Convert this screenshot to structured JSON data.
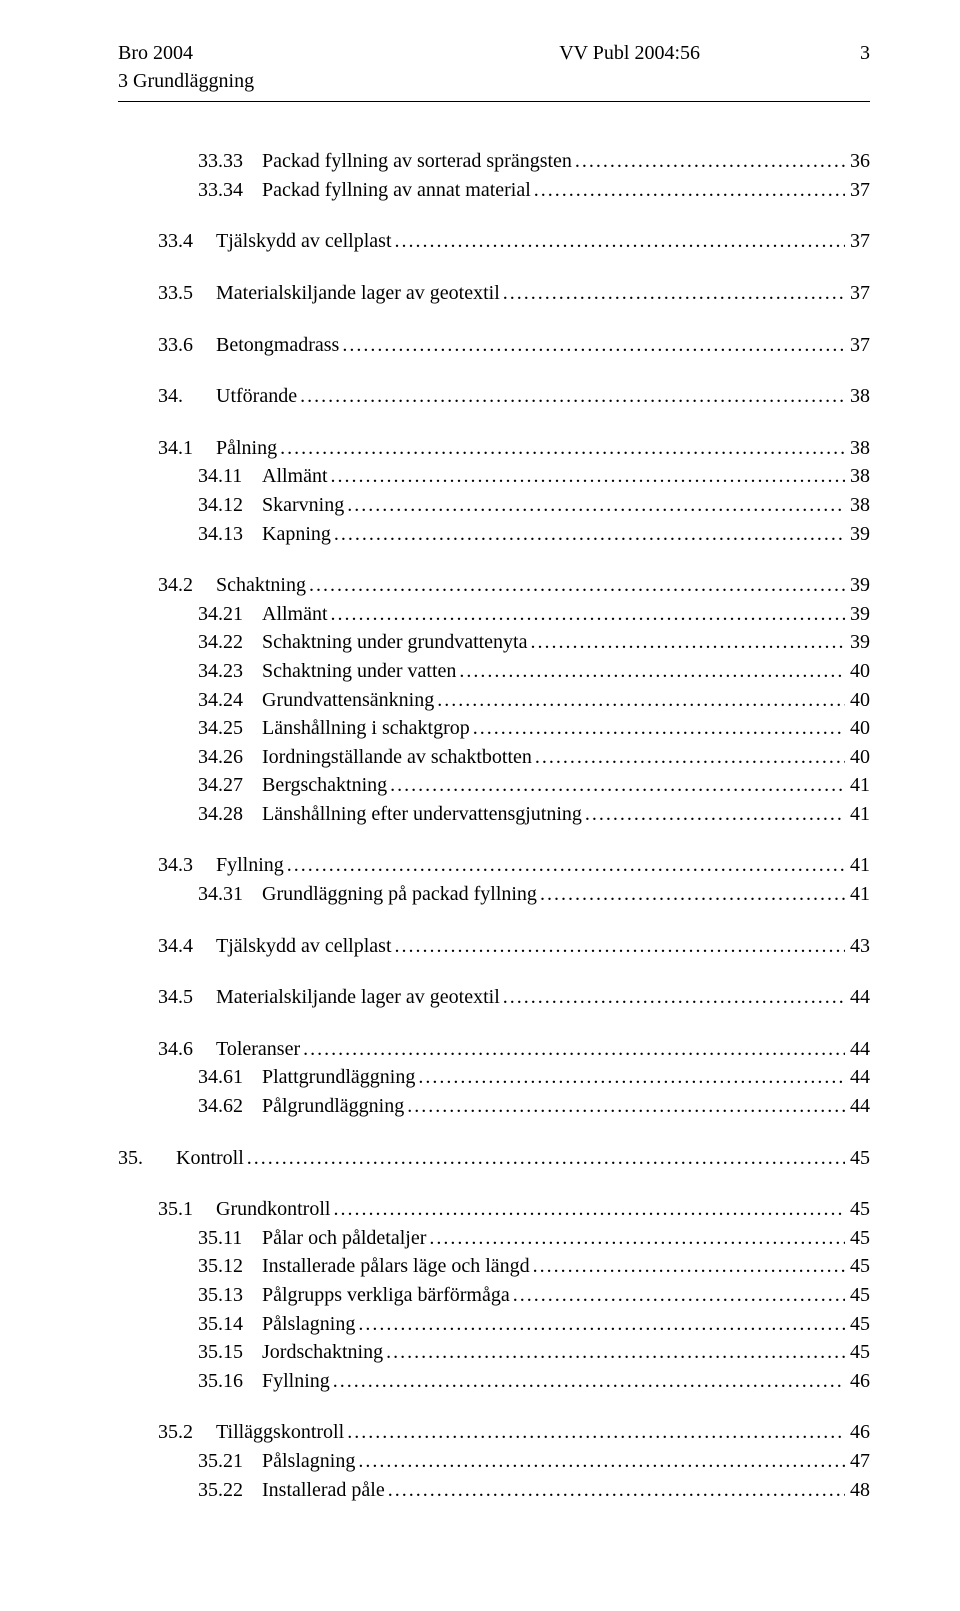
{
  "header": {
    "left": "Bro 2004",
    "center": "VV Publ 2004:56",
    "page": "3",
    "sub": "3 Grundläggning"
  },
  "toc": [
    {
      "items": [
        {
          "indent": 3,
          "num": "33.33",
          "label": "Packad fyllning av sorterad sprängsten",
          "page": "36"
        },
        {
          "indent": 3,
          "num": "33.34",
          "label": "Packad fyllning av annat material",
          "page": "37"
        }
      ]
    },
    {
      "items": [
        {
          "indent": 2,
          "num": "33.4",
          "label": "Tjälskydd av cellplast",
          "page": "37"
        }
      ]
    },
    {
      "items": [
        {
          "indent": 2,
          "num": "33.5",
          "label": "Materialskiljande lager av geotextil",
          "page": "37"
        }
      ]
    },
    {
      "items": [
        {
          "indent": 2,
          "num": "33.6",
          "label": "Betongmadrass",
          "page": "37"
        }
      ]
    },
    {
      "items": [
        {
          "indent": 1,
          "num": "34.",
          "label": "Utförande",
          "page": "38"
        }
      ]
    },
    {
      "items": [
        {
          "indent": 2,
          "num": "34.1",
          "label": "Pålning",
          "page": "38"
        },
        {
          "indent": 3,
          "num": "34.11",
          "label": "Allmänt",
          "page": "38"
        },
        {
          "indent": 3,
          "num": "34.12",
          "label": "Skarvning",
          "page": "38"
        },
        {
          "indent": 3,
          "num": "34.13",
          "label": "Kapning",
          "page": "39"
        }
      ]
    },
    {
      "items": [
        {
          "indent": 2,
          "num": "34.2",
          "label": "Schaktning",
          "page": "39"
        },
        {
          "indent": 3,
          "num": "34.21",
          "label": "Allmänt",
          "page": "39"
        },
        {
          "indent": 3,
          "num": "34.22",
          "label": "Schaktning under grundvattenyta",
          "page": "39"
        },
        {
          "indent": 3,
          "num": "34.23",
          "label": "Schaktning under vatten",
          "page": "40"
        },
        {
          "indent": 3,
          "num": "34.24",
          "label": "Grundvattensänkning",
          "page": "40"
        },
        {
          "indent": 3,
          "num": "34.25",
          "label": "Länshållning i schaktgrop",
          "page": "40"
        },
        {
          "indent": 3,
          "num": "34.26",
          "label": "Iordningställande av schaktbotten",
          "page": "40"
        },
        {
          "indent": 3,
          "num": "34.27",
          "label": "Bergschaktning",
          "page": "41"
        },
        {
          "indent": 3,
          "num": "34.28",
          "label": "Länshållning efter undervattensgjutning",
          "page": "41"
        }
      ]
    },
    {
      "items": [
        {
          "indent": 2,
          "num": "34.3",
          "label": "Fyllning",
          "page": "41"
        },
        {
          "indent": 3,
          "num": "34.31",
          "label": "Grundläggning på packad fyllning",
          "page": "41"
        }
      ]
    },
    {
      "items": [
        {
          "indent": 2,
          "num": "34.4",
          "label": "Tjälskydd av cellplast",
          "page": "43"
        }
      ]
    },
    {
      "items": [
        {
          "indent": 2,
          "num": "34.5",
          "label": "Materialskiljande lager av geotextil",
          "page": "44"
        }
      ]
    },
    {
      "items": [
        {
          "indent": 2,
          "num": "34.6",
          "label": "Toleranser",
          "page": "44"
        },
        {
          "indent": 3,
          "num": "34.61",
          "label": "Plattgrundläggning",
          "page": "44"
        },
        {
          "indent": 3,
          "num": "34.62",
          "label": "Pålgrundläggning",
          "page": "44"
        }
      ]
    },
    {
      "items": [
        {
          "indent": 0,
          "num": "35.",
          "label": "Kontroll",
          "page": "45"
        }
      ]
    },
    {
      "items": [
        {
          "indent": 2,
          "num": "35.1",
          "label": "Grundkontroll",
          "page": "45"
        },
        {
          "indent": 3,
          "num": "35.11",
          "label": "Pålar och påldetaljer",
          "page": "45"
        },
        {
          "indent": 3,
          "num": "35.12",
          "label": "Installerade pålars läge och längd",
          "page": "45"
        },
        {
          "indent": 3,
          "num": "35.13",
          "label": "Pålgrupps verkliga bärförmåga",
          "page": "45"
        },
        {
          "indent": 3,
          "num": "35.14",
          "label": "Pålslagning",
          "page": "45"
        },
        {
          "indent": 3,
          "num": "35.15",
          "label": "Jordschaktning",
          "page": "45"
        },
        {
          "indent": 3,
          "num": "35.16",
          "label": "Fyllning",
          "page": "46"
        }
      ]
    },
    {
      "items": [
        {
          "indent": 2,
          "num": "35.2",
          "label": "Tilläggskontroll",
          "page": "46"
        },
        {
          "indent": 3,
          "num": "35.21",
          "label": "Pålslagning",
          "page": "47"
        },
        {
          "indent": 3,
          "num": "35.22",
          "label": "Installerad påle",
          "page": "48"
        }
      ]
    }
  ]
}
